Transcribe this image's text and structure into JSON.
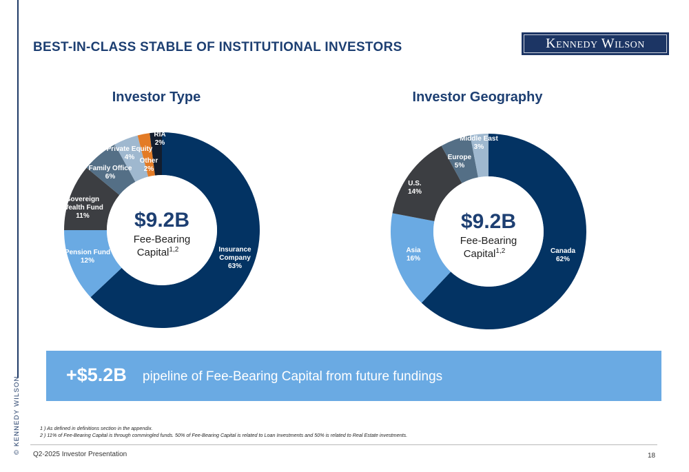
{
  "header": {
    "title": "BEST-IN-CLASS STABLE OF INSTITUTIONAL INVESTORS",
    "logo_text": "Kennedy Wilson"
  },
  "sidebar": {
    "copyright": "© KENNEDY WILSON"
  },
  "center": {
    "amount": "$9.2B",
    "label_line1": "Fee-Bearing",
    "label_line2": "Capital",
    "label_sup": "1,2"
  },
  "chart_data": [
    {
      "type": "pie",
      "title": "Investor Type",
      "slices": [
        {
          "label": "Insurance Company",
          "value": 63,
          "text": "63%",
          "color": "#033363"
        },
        {
          "label": "Pension Fund",
          "value": 12,
          "text": "12%",
          "color": "#6aaae3"
        },
        {
          "label": "Sovereign Wealth Fund",
          "value": 11,
          "text": "11%",
          "color": "#3c3e42"
        },
        {
          "label": "Family Office",
          "value": 6,
          "text": "6%",
          "color": "#546f86"
        },
        {
          "label": "Private Equity",
          "value": 4,
          "text": "4%",
          "color": "#9fb8cf"
        },
        {
          "label": "Other",
          "value": 2,
          "text": "2%",
          "color": "#e37b26"
        },
        {
          "label": "RIA",
          "value": 2,
          "text": "2%",
          "color": "#131d2e"
        }
      ]
    },
    {
      "type": "pie",
      "title": "Investor Geography",
      "slices": [
        {
          "label": "Canada",
          "value": 62,
          "text": "62%",
          "color": "#033363"
        },
        {
          "label": "Asia",
          "value": 16,
          "text": "16%",
          "color": "#6aaae3"
        },
        {
          "label": "U.S.",
          "value": 14,
          "text": "14%",
          "color": "#3c3e42"
        },
        {
          "label": "Europe",
          "value": 5,
          "text": "5%",
          "color": "#546f86"
        },
        {
          "label": "Middle East",
          "value": 3,
          "text": "3%",
          "color": "#9fb8cf"
        }
      ]
    }
  ],
  "banner": {
    "amount": "+$5.2B",
    "text": "pipeline of Fee-Bearing Capital from future fundings"
  },
  "footnotes": [
    "1 ) As defined in definitions section in the appendix.",
    "2 ) 11% of Fee-Bearing Capital is through commingled funds. 50% of Fee-Bearing Capital is related to Loan Investments and 50% is related to Real Estate investments."
  ],
  "footer": {
    "left": "Q2-2025 Investor Presentation",
    "page": "18"
  }
}
